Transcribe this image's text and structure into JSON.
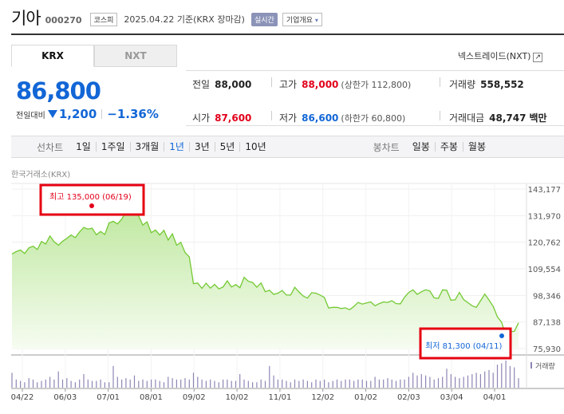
{
  "header": {
    "stock_name": "기아",
    "stock_code": "000270",
    "market": "코스피",
    "date_text": "2025.04.22 기준(KRX 장마감)",
    "realtime_label": "실시간",
    "company_info_label": "기업개요"
  },
  "tabs": [
    {
      "label": "KRX",
      "active": true
    },
    {
      "label": "NXT",
      "active": false
    }
  ],
  "nxt_link": "넥스트레이드(NXT)",
  "quote": {
    "price": "86,800",
    "prev_label": "전일대비",
    "change": "1,200",
    "change_pct": "−1.36%"
  },
  "stats": {
    "prev_close": {
      "label": "전일",
      "value": "88,000"
    },
    "high": {
      "label": "고가",
      "value": "88,000",
      "sub": "(상한가 112,800)"
    },
    "volume": {
      "label": "거래량",
      "value": "558,552"
    },
    "open": {
      "label": "시가",
      "value": "87,600"
    },
    "low": {
      "label": "저가",
      "value": "86,600",
      "sub": "(하한가 60,800)"
    },
    "amount": {
      "label": "거래대금",
      "value": "48,747",
      "unit": "백만"
    }
  },
  "toolbar": {
    "line_chart_label": "선차트",
    "periods": [
      "1일",
      "1주일",
      "3개월",
      "1년",
      "3년",
      "5년",
      "10년"
    ],
    "selected_period": "1년",
    "candle_chart_label": "봉차트",
    "candle_periods": [
      "일봉",
      "주봉",
      "월봉"
    ]
  },
  "chart_source": "한국거래소(KRX)",
  "colors": {
    "up": "#e3001b",
    "down": "#1266d6",
    "line": "#74c934",
    "volume": "#8f85b5",
    "highlight_box": "#e60012"
  },
  "chart_data": {
    "type": "area",
    "title": "",
    "y_ticks": [
      143177,
      131970,
      120762,
      109554,
      98346,
      87138,
      75930
    ],
    "ylim": [
      75930,
      143177
    ],
    "x_labels": [
      "04/22",
      "06/03",
      "07/01",
      "08/01",
      "09/02",
      "10/02",
      "11/01",
      "12/02",
      "01/02",
      "02/03",
      "03/04",
      "04/01"
    ],
    "volume_label": "거래량",
    "max_marker": {
      "label": "최고 135,000 (06/19)",
      "value": 135000,
      "date": "06/19"
    },
    "min_marker": {
      "label": "최저 81,300 (04/11)",
      "value": 81300,
      "date": "04/11"
    },
    "series": [
      {
        "values": [
          115800,
          116800,
          117500,
          116000,
          118400,
          119100,
          117700,
          121100,
          120000,
          123400,
          121000,
          119500,
          121200,
          122400,
          123800,
          122700,
          125100,
          127000,
          126300,
          126700,
          123900,
          125300,
          124000,
          128900,
          129600,
          128500,
          130500,
          133700,
          132900,
          135000,
          131800,
          128000,
          129400,
          124800,
          125900,
          123800,
          125800,
          121700,
          124300,
          119500,
          120700,
          116400,
          114600,
          103300,
          103600,
          101300,
          103500,
          101400,
          103000,
          101100,
          101900,
          104500,
          101900,
          102900,
          101600,
          106000,
          104300,
          103800,
          101800,
          103600,
          99900,
          100500,
          98800,
          99300,
          100400,
          98500,
          98500,
          101800,
          99800,
          98100,
          97200,
          99500,
          99300,
          98500,
          97500,
          93000,
          93300,
          93300,
          92800,
          93100,
          92300,
          93700,
          95400,
          94700,
          95200,
          95600,
          94000,
          94900,
          95600,
          95400,
          96100,
          94900,
          94800,
          97600,
          99600,
          100700,
          98800,
          99900,
          100700,
          100200,
          97300,
          97100,
          100700,
          100500,
          96300,
          96500,
          99600,
          96600,
          95300,
          94000,
          93300,
          96100,
          98900,
          96400,
          93700,
          89300,
          87000,
          81300,
          83100,
          83200,
          86800
        ]
      }
    ],
    "volume": [
      0.55,
      0.3,
      0.25,
      0.2,
      0.35,
      0.3,
      0.2,
      0.25,
      0.3,
      0.4,
      0.3,
      0.6,
      0.3,
      0.35,
      0.25,
      0.2,
      0.3,
      0.5,
      0.3,
      0.25,
      0.25,
      0.3,
      0.2,
      0.2,
      0.8,
      0.4,
      0.3,
      0.35,
      0.3,
      0.45,
      0.25,
      0.3,
      0.25,
      0.3,
      0.3,
      0.25,
      0.2,
      0.4,
      0.35,
      0.3,
      0.3,
      0.35,
      0.3,
      0.55,
      0.4,
      0.3,
      0.25,
      0.3,
      0.25,
      0.2,
      0.3,
      0.3,
      0.25,
      0.25,
      0.5,
      0.3,
      0.25,
      0.2,
      0.2,
      0.3,
      0.25,
      0.8,
      0.45,
      0.3,
      0.3,
      0.25,
      0.2,
      0.3,
      0.25,
      0.3,
      0.25,
      0.2,
      0.3,
      0.25,
      0.3,
      0.2,
      0.25,
      0.3,
      0.25,
      0.3,
      0.3,
      0.25,
      0.3,
      0.3,
      0.25,
      0.25,
      0.4,
      0.3,
      0.3,
      0.35,
      0.3,
      0.25,
      0.3,
      0.3,
      0.4,
      0.55,
      0.45,
      0.5,
      0.45,
      0.4,
      0.3,
      0.35,
      0.4,
      0.7,
      0.5,
      0.4,
      0.35,
      0.4,
      0.45,
      0.5,
      0.55,
      0.5,
      0.6,
      0.65,
      0.55,
      0.85,
      0.9,
      1.0,
      0.8,
      0.75,
      0.35
    ]
  }
}
